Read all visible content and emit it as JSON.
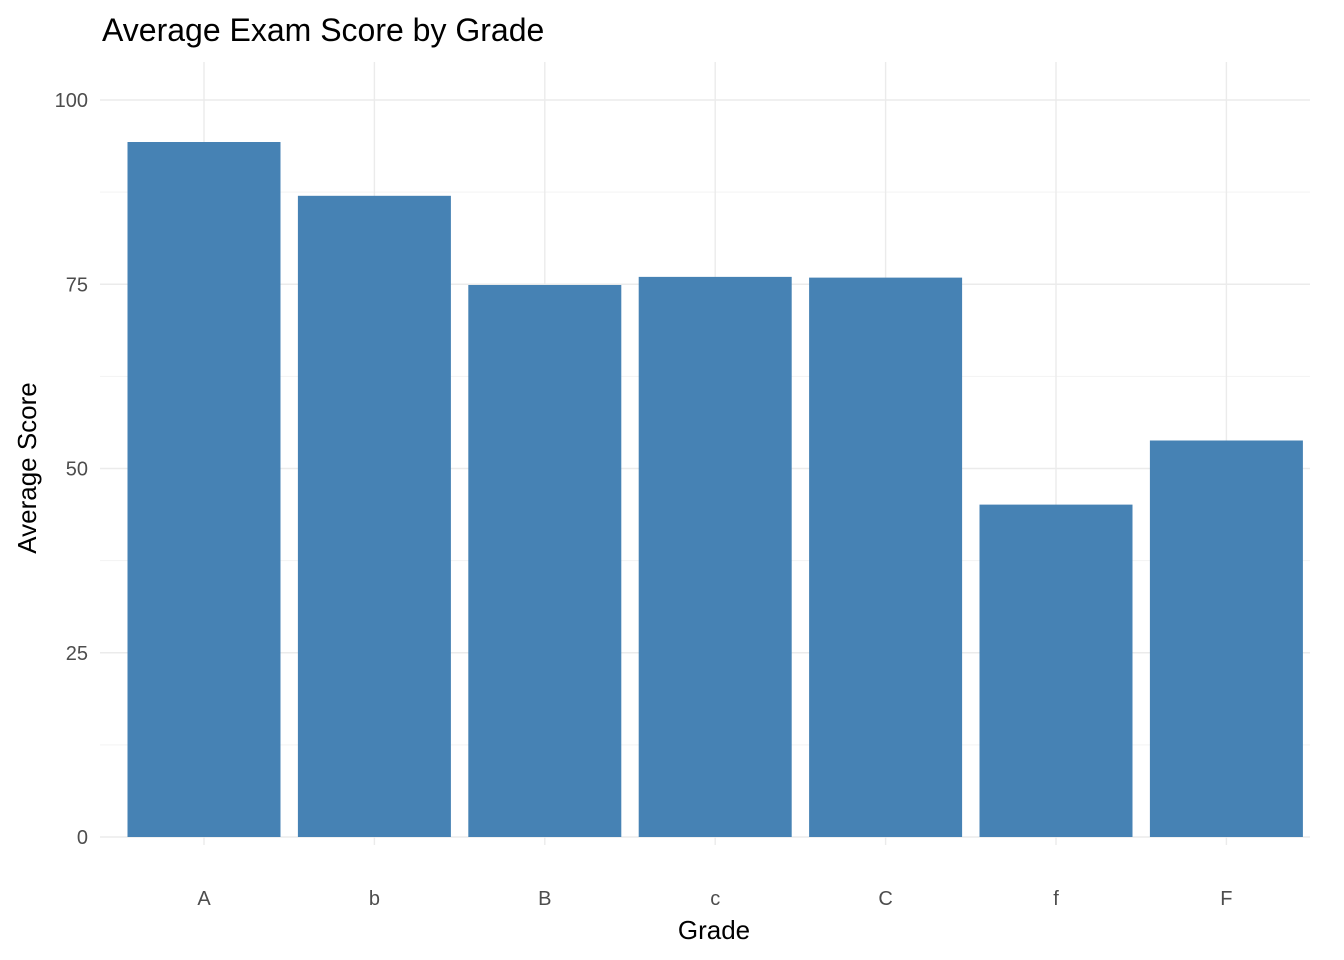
{
  "chart_data": {
    "type": "bar",
    "title": "Average Exam Score by Grade",
    "xlabel": "Grade",
    "ylabel": "Average Score",
    "categories": [
      "A",
      "b",
      "B",
      "c",
      "C",
      "f",
      "F"
    ],
    "values": [
      94.3,
      87.0,
      74.9,
      76.0,
      75.9,
      45.1,
      53.8
    ],
    "ylim": [
      0,
      100
    ],
    "yticks": [
      0,
      25,
      50,
      75,
      100
    ],
    "ytick_labels": [
      "0",
      "25",
      "50",
      "75",
      "100"
    ],
    "grid": true,
    "bar_color": "#4682b4"
  }
}
